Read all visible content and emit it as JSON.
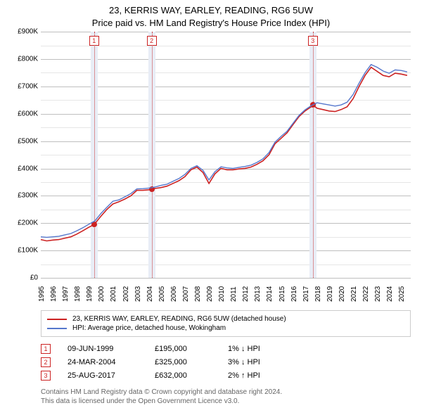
{
  "title_line1": "23, KERRIS WAY, EARLEY, READING, RG6 5UW",
  "title_line2": "Price paid vs. HM Land Registry's House Price Index (HPI)",
  "chart": {
    "type": "line",
    "background_color": "#ffffff",
    "grid_major_color": "#bfbfbf",
    "grid_minor_color": "#e6e6e6",
    "y": {
      "min": 0,
      "max": 900000,
      "step": 100000,
      "ticks": [
        "£0",
        "£100K",
        "£200K",
        "£300K",
        "£400K",
        "£500K",
        "£600K",
        "£700K",
        "£800K",
        "£900K"
      ]
    },
    "x": {
      "min": 1995,
      "max": 2025.8,
      "ticks": [
        1995,
        1996,
        1997,
        1998,
        1999,
        2000,
        2001,
        2002,
        2003,
        2004,
        2005,
        2006,
        2007,
        2008,
        2009,
        2010,
        2011,
        2012,
        2013,
        2014,
        2015,
        2016,
        2017,
        2018,
        2019,
        2020,
        2021,
        2022,
        2023,
        2024,
        2025
      ]
    },
    "band_fill": "#e8edf6",
    "dash_color": "#cc3333",
    "series": [
      {
        "name": "23, KERRIS WAY, EARLEY, READING, RG6 5UW (detached house)",
        "color": "#cc2222",
        "width": 1.6,
        "points": [
          [
            1995,
            140000
          ],
          [
            1995.5,
            135000
          ],
          [
            1996,
            138000
          ],
          [
            1996.5,
            140000
          ],
          [
            1997,
            145000
          ],
          [
            1997.5,
            150000
          ],
          [
            1998,
            160000
          ],
          [
            1998.5,
            172000
          ],
          [
            1999,
            185000
          ],
          [
            1999.44,
            195000
          ],
          [
            2000,
            225000
          ],
          [
            2000.5,
            250000
          ],
          [
            2001,
            270000
          ],
          [
            2001.5,
            278000
          ],
          [
            2002,
            288000
          ],
          [
            2002.5,
            300000
          ],
          [
            2003,
            320000
          ],
          [
            2003.5,
            320000
          ],
          [
            2004,
            322000
          ],
          [
            2004.23,
            325000
          ],
          [
            2005,
            330000
          ],
          [
            2005.5,
            335000
          ],
          [
            2006,
            345000
          ],
          [
            2006.5,
            355000
          ],
          [
            2007,
            370000
          ],
          [
            2007.5,
            395000
          ],
          [
            2008,
            405000
          ],
          [
            2008.5,
            385000
          ],
          [
            2009,
            345000
          ],
          [
            2009.5,
            380000
          ],
          [
            2010,
            400000
          ],
          [
            2010.5,
            395000
          ],
          [
            2011,
            395000
          ],
          [
            2011.5,
            398000
          ],
          [
            2012,
            400000
          ],
          [
            2012.5,
            405000
          ],
          [
            2013,
            415000
          ],
          [
            2013.5,
            428000
          ],
          [
            2014,
            450000
          ],
          [
            2014.5,
            490000
          ],
          [
            2015,
            510000
          ],
          [
            2015.5,
            530000
          ],
          [
            2016,
            560000
          ],
          [
            2016.5,
            590000
          ],
          [
            2017,
            610000
          ],
          [
            2017.5,
            625000
          ],
          [
            2017.65,
            632000
          ],
          [
            2018,
            620000
          ],
          [
            2018.5,
            615000
          ],
          [
            2019,
            610000
          ],
          [
            2019.5,
            608000
          ],
          [
            2020,
            615000
          ],
          [
            2020.5,
            625000
          ],
          [
            2021,
            655000
          ],
          [
            2021.5,
            700000
          ],
          [
            2022,
            740000
          ],
          [
            2022.5,
            770000
          ],
          [
            2023,
            755000
          ],
          [
            2023.5,
            740000
          ],
          [
            2024,
            735000
          ],
          [
            2024.5,
            748000
          ],
          [
            2025,
            745000
          ],
          [
            2025.5,
            740000
          ]
        ]
      },
      {
        "name": "HPI: Average price, detached house, Wokingham",
        "color": "#5577cc",
        "width": 1.4,
        "points": [
          [
            1995,
            150000
          ],
          [
            1995.5,
            148000
          ],
          [
            1996,
            150000
          ],
          [
            1996.5,
            152000
          ],
          [
            1997,
            157000
          ],
          [
            1997.5,
            162000
          ],
          [
            1998,
            172000
          ],
          [
            1998.5,
            183000
          ],
          [
            1999,
            196000
          ],
          [
            1999.5,
            208000
          ],
          [
            2000,
            235000
          ],
          [
            2000.5,
            258000
          ],
          [
            2001,
            280000
          ],
          [
            2001.5,
            285000
          ],
          [
            2002,
            296000
          ],
          [
            2002.5,
            308000
          ],
          [
            2003,
            325000
          ],
          [
            2003.5,
            326000
          ],
          [
            2004,
            328000
          ],
          [
            2004.5,
            332000
          ],
          [
            2005,
            338000
          ],
          [
            2005.5,
            342000
          ],
          [
            2006,
            353000
          ],
          [
            2006.5,
            363000
          ],
          [
            2007,
            378000
          ],
          [
            2007.5,
            400000
          ],
          [
            2008,
            410000
          ],
          [
            2008.5,
            393000
          ],
          [
            2009,
            358000
          ],
          [
            2009.5,
            388000
          ],
          [
            2010,
            406000
          ],
          [
            2010.5,
            402000
          ],
          [
            2011,
            400000
          ],
          [
            2011.5,
            404000
          ],
          [
            2012,
            407000
          ],
          [
            2012.5,
            412000
          ],
          [
            2013,
            422000
          ],
          [
            2013.5,
            435000
          ],
          [
            2014,
            458000
          ],
          [
            2014.5,
            496000
          ],
          [
            2015,
            517000
          ],
          [
            2015.5,
            536000
          ],
          [
            2016,
            565000
          ],
          [
            2016.5,
            594000
          ],
          [
            2017,
            614000
          ],
          [
            2017.5,
            629000
          ],
          [
            2018,
            640000
          ],
          [
            2018.5,
            636000
          ],
          [
            2019,
            632000
          ],
          [
            2019.5,
            628000
          ],
          [
            2020,
            632000
          ],
          [
            2020.5,
            642000
          ],
          [
            2021,
            670000
          ],
          [
            2021.5,
            712000
          ],
          [
            2022,
            750000
          ],
          [
            2022.5,
            780000
          ],
          [
            2023,
            770000
          ],
          [
            2023.5,
            756000
          ],
          [
            2024,
            748000
          ],
          [
            2024.5,
            760000
          ],
          [
            2025,
            758000
          ],
          [
            2025.5,
            753000
          ]
        ]
      }
    ],
    "events": [
      {
        "n": "1",
        "date": "09-JUN-1999",
        "year": 1999.44,
        "price_label": "£195,000",
        "price": 195000,
        "delta": "1% ↓ HPI"
      },
      {
        "n": "2",
        "date": "24-MAR-2004",
        "year": 2004.23,
        "price_label": "£325,000",
        "price": 325000,
        "delta": "3% ↓ HPI"
      },
      {
        "n": "3",
        "date": "25-AUG-2017",
        "year": 2017.65,
        "price_label": "£632,000",
        "price": 632000,
        "delta": "2% ↑ HPI"
      }
    ],
    "event_dot": {
      "color": "#cc2222",
      "radius": 4
    },
    "badge": {
      "border": "#cc2222",
      "text": "#cc2222"
    }
  },
  "copyright_line1": "Contains HM Land Registry data © Crown copyright and database right 2024.",
  "copyright_line2": "This data is licensed under the Open Government Licence v3.0."
}
